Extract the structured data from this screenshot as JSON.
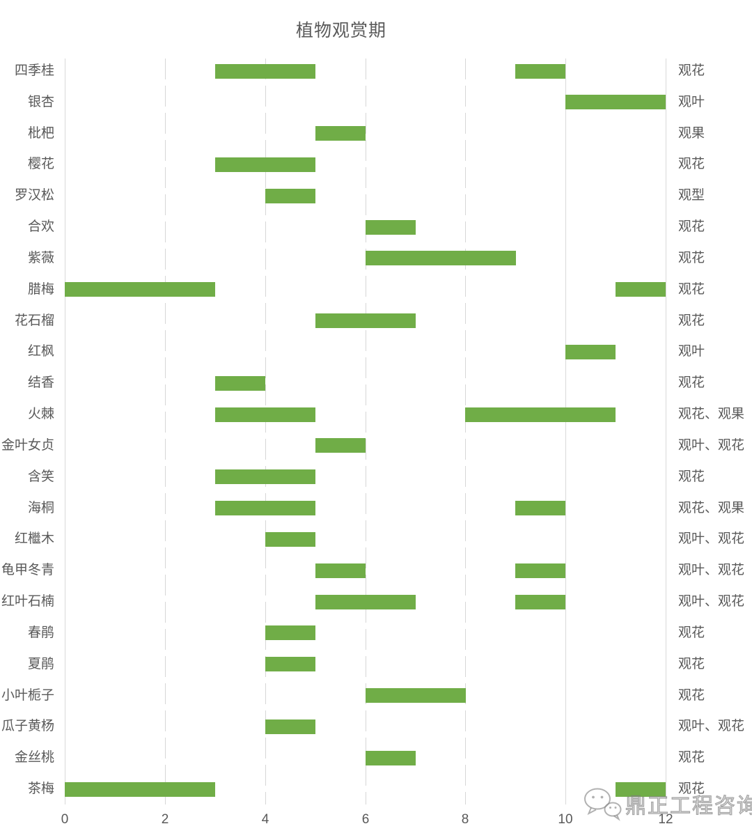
{
  "chart_data": {
    "type": "bar",
    "variant": "gantt-months",
    "title": "植物观赏期",
    "xlabel": "",
    "ylabel": "",
    "xlim": [
      0,
      12
    ],
    "x_ticks": [
      "0",
      "2",
      "4",
      "6",
      "8",
      "10",
      "12"
    ],
    "x_tick_values": [
      0,
      2,
      4,
      6,
      8,
      10,
      12
    ],
    "grid": "vertical",
    "grid_dashed_ticks": [
      2,
      4,
      6,
      8
    ],
    "legend": "none",
    "rows": [
      {
        "name": "四季桂",
        "periods": [
          [
            3,
            5
          ],
          [
            9,
            10
          ]
        ],
        "view_type": "观花"
      },
      {
        "name": "银杏",
        "periods": [
          [
            10,
            12
          ]
        ],
        "view_type": "观叶"
      },
      {
        "name": "枇杷",
        "periods": [
          [
            5,
            6
          ]
        ],
        "view_type": "观果"
      },
      {
        "name": "樱花",
        "periods": [
          [
            3,
            5
          ]
        ],
        "view_type": "观花"
      },
      {
        "name": "罗汉松",
        "periods": [
          [
            4,
            5
          ]
        ],
        "view_type": "观型"
      },
      {
        "name": "合欢",
        "periods": [
          [
            6,
            7
          ]
        ],
        "view_type": "观花"
      },
      {
        "name": "紫薇",
        "periods": [
          [
            6,
            9
          ]
        ],
        "view_type": "观花"
      },
      {
        "name": "腊梅",
        "periods": [
          [
            0,
            3
          ],
          [
            11,
            12
          ]
        ],
        "view_type": "观花"
      },
      {
        "name": "花石榴",
        "periods": [
          [
            5,
            7
          ]
        ],
        "view_type": "观花"
      },
      {
        "name": "红枫",
        "periods": [
          [
            10,
            11
          ]
        ],
        "view_type": "观叶"
      },
      {
        "name": "结香",
        "periods": [
          [
            3,
            4
          ]
        ],
        "view_type": "观花"
      },
      {
        "name": "火棘",
        "periods": [
          [
            3,
            5
          ],
          [
            8,
            11
          ]
        ],
        "view_type": "观花、观果"
      },
      {
        "name": "金叶女贞",
        "periods": [
          [
            5,
            6
          ]
        ],
        "view_type": "观叶、观花"
      },
      {
        "name": "含笑",
        "periods": [
          [
            3,
            5
          ]
        ],
        "view_type": "观花"
      },
      {
        "name": "海桐",
        "periods": [
          [
            3,
            5
          ],
          [
            9,
            10
          ]
        ],
        "view_type": "观花、观果"
      },
      {
        "name": "红檵木",
        "periods": [
          [
            4,
            5
          ]
        ],
        "view_type": "观叶、观花"
      },
      {
        "name": "龟甲冬青",
        "periods": [
          [
            5,
            6
          ],
          [
            9,
            10
          ]
        ],
        "view_type": "观叶、观花"
      },
      {
        "name": "红叶石楠",
        "periods": [
          [
            5,
            7
          ],
          [
            9,
            10
          ]
        ],
        "view_type": "观叶、观花"
      },
      {
        "name": "春鹃",
        "periods": [
          [
            4,
            5
          ]
        ],
        "view_type": "观花"
      },
      {
        "name": "夏鹃",
        "periods": [
          [
            4,
            5
          ]
        ],
        "view_type": "观花"
      },
      {
        "name": "小叶栀子",
        "periods": [
          [
            6,
            8
          ]
        ],
        "view_type": "观花"
      },
      {
        "name": "瓜子黄杨",
        "periods": [
          [
            4,
            5
          ]
        ],
        "view_type": "观叶、观花"
      },
      {
        "name": "金丝桃",
        "periods": [
          [
            6,
            7
          ]
        ],
        "view_type": "观花"
      },
      {
        "name": "茶梅",
        "periods": [
          [
            0,
            3
          ],
          [
            11,
            12
          ]
        ],
        "view_type": "观花"
      }
    ]
  },
  "watermark": {
    "icon": "wechat-icon",
    "text": "鼎正工程咨询"
  },
  "colors": {
    "bar": "#70AD47",
    "label": "#595959",
    "grid": "#D9D9D9",
    "watermark": "#9A9A9A"
  }
}
